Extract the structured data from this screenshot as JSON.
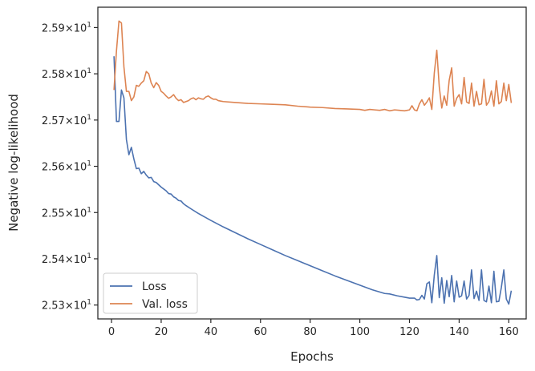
{
  "chart_data": {
    "type": "line",
    "xlabel": "Epochs",
    "ylabel": "Negative log-likelihood",
    "xlim": [
      -5.5,
      167
    ],
    "ylim": [
      25.27,
      25.944
    ],
    "x_ticks": [
      0,
      20,
      40,
      60,
      80,
      100,
      120,
      140,
      160
    ],
    "x_tick_labels": [
      "0",
      "20",
      "40",
      "60",
      "80",
      "100",
      "120",
      "140",
      "160"
    ],
    "y_ticks": [
      25.3,
      25.4,
      25.5,
      25.6,
      25.7,
      25.8,
      25.9
    ],
    "y_tick_mantissas": [
      "2.53",
      "2.54",
      "2.55",
      "2.56",
      "2.57",
      "2.58",
      "2.59"
    ],
    "y_tick_base": "10",
    "y_tick_exponent": "1",
    "grid": false,
    "legend_position": "lower-left",
    "series": [
      {
        "name": "Loss",
        "color": "#4c72b0",
        "x": [
          1,
          2,
          3,
          4,
          5,
          6,
          7,
          8,
          9,
          10,
          11,
          12,
          13,
          14,
          15,
          16,
          17,
          18,
          19,
          20,
          21,
          22,
          23,
          24,
          25,
          26,
          27,
          28,
          29,
          30,
          32,
          35,
          40,
          45,
          50,
          55,
          60,
          65,
          70,
          75,
          80,
          85,
          90,
          95,
          100,
          105,
          110,
          112,
          115,
          120,
          122,
          123,
          124,
          125,
          126,
          127,
          128,
          129,
          130,
          131,
          132,
          133,
          134,
          135,
          136,
          137,
          138,
          139,
          140,
          141,
          142,
          143,
          144,
          145,
          146,
          147,
          148,
          149,
          150,
          151,
          152,
          153,
          154,
          155,
          156,
          157,
          158,
          159,
          160,
          161
        ],
        "y": [
          25.838,
          25.697,
          25.697,
          25.765,
          25.748,
          25.658,
          25.625,
          25.641,
          25.616,
          25.595,
          25.596,
          25.584,
          25.589,
          25.581,
          25.575,
          25.576,
          25.567,
          25.565,
          25.56,
          25.555,
          25.551,
          25.547,
          25.541,
          25.54,
          25.534,
          25.531,
          25.526,
          25.525,
          25.519,
          25.515,
          25.508,
          25.498,
          25.483,
          25.469,
          25.456,
          25.443,
          25.431,
          25.419,
          25.407,
          25.396,
          25.385,
          25.374,
          25.363,
          25.353,
          25.343,
          25.333,
          25.325,
          25.324,
          25.32,
          25.315,
          25.315,
          25.311,
          25.312,
          25.321,
          25.313,
          25.346,
          25.35,
          25.305,
          25.365,
          25.407,
          25.316,
          25.359,
          25.304,
          25.353,
          25.318,
          25.364,
          25.307,
          25.352,
          25.317,
          25.32,
          25.352,
          25.313,
          25.321,
          25.376,
          25.314,
          25.33,
          25.31,
          25.376,
          25.31,
          25.307,
          25.341,
          25.305,
          25.373,
          25.307,
          25.308,
          25.338,
          25.376,
          25.313,
          25.302,
          25.331
        ]
      },
      {
        "name": "Val. loss",
        "color": "#dd8452",
        "x": [
          1,
          2,
          3,
          4,
          5,
          6,
          7,
          8,
          9,
          10,
          11,
          12,
          13,
          14,
          15,
          16,
          17,
          18,
          19,
          20,
          21,
          22,
          23,
          24,
          25,
          26,
          27,
          28,
          29,
          30,
          31,
          32,
          33,
          34,
          35,
          36,
          37,
          38,
          39,
          40,
          41,
          42,
          43,
          44,
          45,
          50,
          55,
          60,
          65,
          70,
          75,
          80,
          85,
          90,
          95,
          100,
          102,
          104,
          106,
          108,
          110,
          112,
          114,
          116,
          118,
          120,
          121,
          122,
          123,
          124,
          125,
          126,
          127,
          128,
          129,
          130,
          131,
          132,
          133,
          134,
          135,
          136,
          137,
          138,
          139,
          140,
          141,
          142,
          143,
          144,
          145,
          146,
          147,
          148,
          149,
          150,
          151,
          152,
          153,
          154,
          155,
          156,
          157,
          158,
          159,
          160,
          161
        ],
        "y": [
          25.765,
          25.85,
          25.914,
          25.91,
          25.815,
          25.762,
          25.762,
          25.742,
          25.75,
          25.775,
          25.773,
          25.78,
          25.785,
          25.805,
          25.8,
          25.78,
          25.77,
          25.781,
          25.775,
          25.762,
          25.758,
          25.752,
          25.747,
          25.75,
          25.755,
          25.747,
          25.742,
          25.744,
          25.738,
          25.74,
          25.742,
          25.746,
          25.748,
          25.744,
          25.748,
          25.746,
          25.745,
          25.75,
          25.752,
          25.748,
          25.745,
          25.745,
          25.742,
          25.741,
          25.74,
          25.738,
          25.736,
          25.735,
          25.734,
          25.733,
          25.73,
          25.728,
          25.727,
          25.725,
          25.724,
          25.723,
          25.721,
          25.723,
          25.722,
          25.721,
          25.723,
          25.72,
          25.722,
          25.721,
          25.72,
          25.722,
          25.731,
          25.722,
          25.72,
          25.735,
          25.744,
          25.732,
          25.739,
          25.748,
          25.723,
          25.802,
          25.851,
          25.772,
          25.726,
          25.752,
          25.732,
          25.786,
          25.813,
          25.73,
          25.747,
          25.755,
          25.735,
          25.792,
          25.739,
          25.736,
          25.78,
          25.73,
          25.762,
          25.733,
          25.735,
          25.788,
          25.732,
          25.74,
          25.763,
          25.73,
          25.785,
          25.735,
          25.74,
          25.78,
          25.742,
          25.777,
          25.737
        ]
      }
    ]
  }
}
